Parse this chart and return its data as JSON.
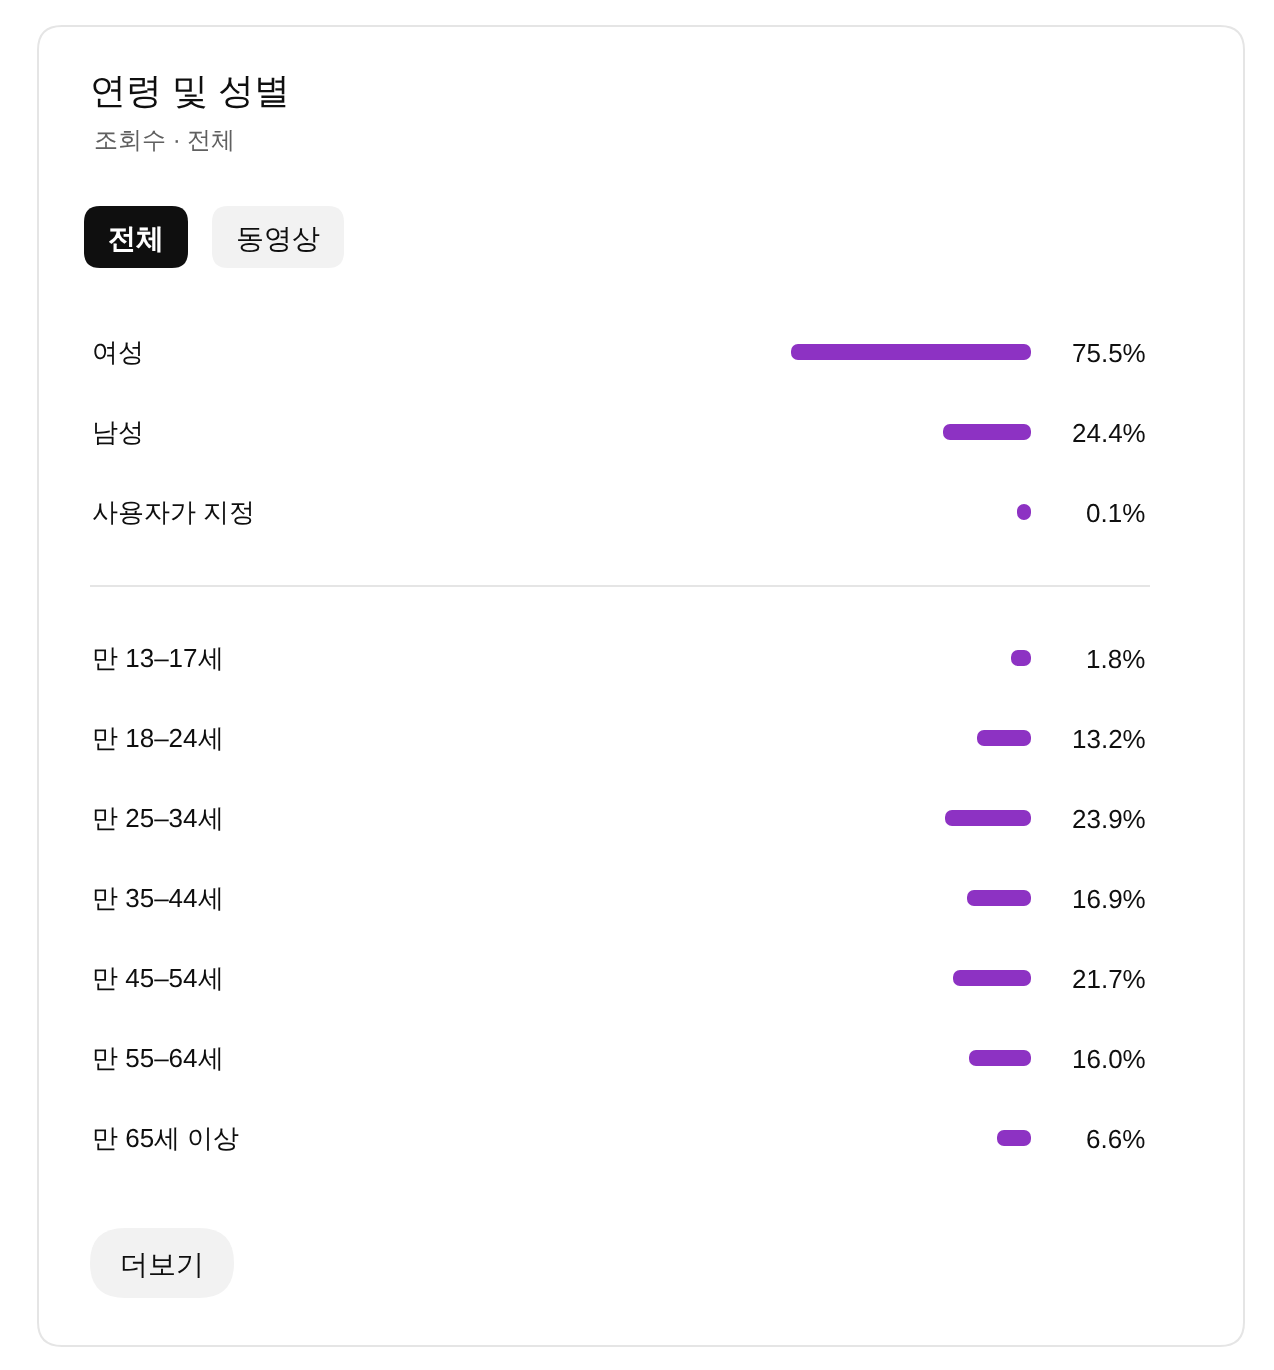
{
  "chart_data": [
    {
      "type": "bar",
      "orientation": "horizontal",
      "title": "연령 및 성별",
      "subtitle": "조회수 · 전체",
      "annotations": [
        "전체",
        "동영상"
      ],
      "categories": [
        "여성",
        "남성",
        "사용자가 지정"
      ],
      "values": [
        75.5,
        24.4,
        0.1
      ],
      "value_labels": [
        "75.5%",
        "24.4%",
        "0.1%"
      ],
      "color": "#8d32c3",
      "tick_labels": "y"
    },
    {
      "type": "bar",
      "orientation": "horizontal",
      "annotations": [
        "더보기"
      ],
      "categories": [
        "만 13–17세",
        "만 18–24세",
        "만 25–34세",
        "만 35–44세",
        "만 45–54세",
        "만 55–64세",
        "만 65세 이상"
      ],
      "values": [
        1.8,
        13.2,
        23.9,
        16.9,
        21.7,
        16.0,
        6.6
      ],
      "value_labels": [
        "1.8%",
        "13.2%",
        "23.9%",
        "16.9%",
        "21.7%",
        "16.0%",
        "6.6%"
      ],
      "color": "#8d32c3",
      "tick_labels": "y"
    }
  ]
}
